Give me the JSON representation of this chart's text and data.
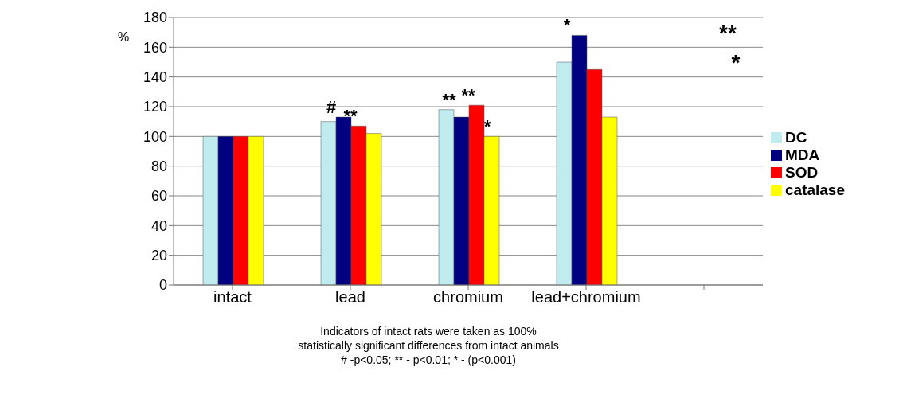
{
  "chart_data": {
    "type": "bar",
    "ylabel": "%",
    "categories": [
      "intact",
      "lead",
      "chromium",
      "lead+chromium",
      null
    ],
    "series": [
      {
        "name": "DC",
        "color": "#c0ecf0",
        "values": [
          100,
          110,
          118,
          150,
          null
        ]
      },
      {
        "name": "MDA",
        "color": "#000080",
        "values": [
          100,
          113,
          113,
          168,
          null
        ]
      },
      {
        "name": "SOD",
        "color": "#ff0000",
        "values": [
          100,
          107,
          121,
          145,
          null
        ]
      },
      {
        "name": "catalase",
        "color": "#ffff00",
        "values": [
          100,
          102,
          100,
          113,
          null
        ]
      }
    ],
    "ylim": [
      0,
      180
    ],
    "yticks": [
      0,
      20,
      40,
      60,
      80,
      100,
      120,
      140,
      160,
      180
    ],
    "grid": "y",
    "legend": "right",
    "annotations": [
      {
        "text": "#",
        "x": "lead",
        "y": 113
      },
      {
        "text": "**",
        "x": "lead",
        "y": 107
      },
      {
        "text": "**",
        "x": "chromium",
        "y": 118
      },
      {
        "text": "**",
        "x": "chromium",
        "y": 121
      },
      {
        "text": "*",
        "x": "chromium",
        "y": 100
      },
      {
        "text": "*",
        "x": "lead+chromium",
        "y": 168
      },
      "**",
      "*",
      "Indicators of intact rats were taken as 100%",
      "statistically significant differences from intact animals",
      "# -p<0.05; ** - p<0.01; * - (p<0.001)"
    ]
  }
}
